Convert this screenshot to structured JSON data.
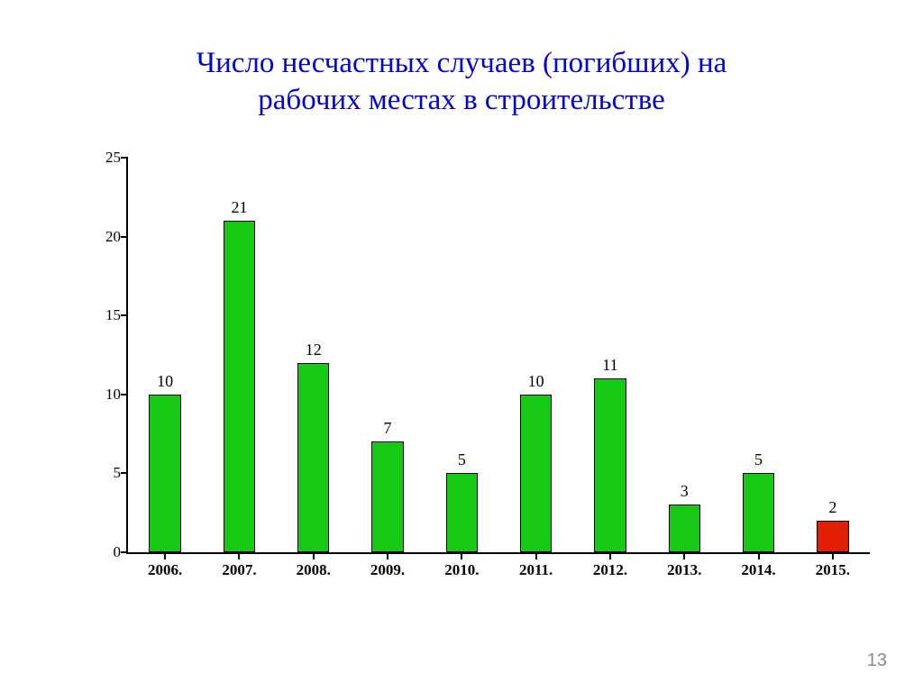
{
  "title": {
    "line1": "Число несчастных случаев (погибших) на",
    "line2": "рабочих местах в строительстве",
    "color": "#0202d3",
    "fontsize": 33
  },
  "page_number": "13",
  "chart": {
    "type": "bar",
    "categories": [
      "2006.",
      "2007.",
      "2008.",
      "2009.",
      "2010.",
      "2011.",
      "2012.",
      "2013.",
      "2014.",
      "2015."
    ],
    "values": [
      10,
      21,
      12,
      7,
      5,
      10,
      11,
      3,
      5,
      2
    ],
    "value_labels": [
      "10",
      "21",
      "12",
      "7",
      "5",
      "10",
      "11",
      "3",
      "5",
      "2"
    ],
    "bar_colors": [
      "#17c814",
      "#17c814",
      "#17c814",
      "#17c814",
      "#17c814",
      "#17c814",
      "#17c814",
      "#17c814",
      "#17c814",
      "#e21f05"
    ],
    "bar_border_color": "#000000",
    "ylim": [
      0,
      25
    ],
    "ytick_step": 5,
    "yticks": [
      0,
      5,
      10,
      15,
      20,
      25
    ],
    "axis_color": "#000000",
    "background_color": "#ffffff",
    "bar_width": 0.43,
    "xlabel_fontweight": "bold",
    "label_fontsize": 17,
    "value_label_fontsize": 18
  }
}
